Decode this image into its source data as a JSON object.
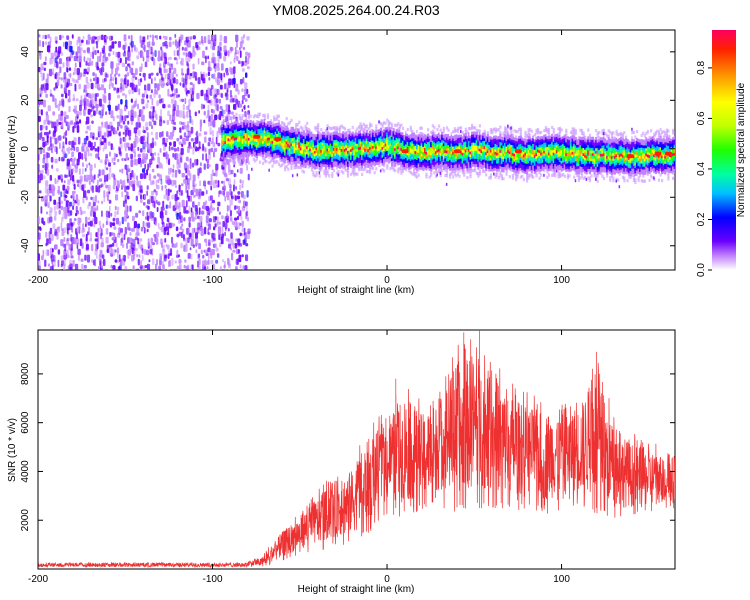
{
  "chart_data": [
    {
      "type": "heatmap",
      "title": "YM08.2025.264.00.24.R03",
      "xlabel": "Height of straight line (km)",
      "ylabel": "Frequency (Hz)",
      "xlim": [
        -200,
        165
      ],
      "ylim": [
        -50,
        49
      ],
      "xticks": [
        -200,
        -100,
        0,
        100
      ],
      "xtick_labels": [
        "-200",
        "-100",
        "0",
        "100"
      ],
      "yticks": [
        40,
        20,
        0,
        -20,
        -40
      ],
      "ytick_labels": [
        "40",
        "20",
        "0",
        "-20",
        "-40"
      ],
      "noise_region_x": [
        -200,
        -80
      ],
      "signal_region_x": [
        -95,
        165
      ],
      "signal_centerline": {
        "x": [
          -95,
          -80,
          -70,
          -60,
          -50,
          -40,
          -30,
          -20,
          -10,
          0,
          10,
          20,
          30,
          40,
          50,
          60,
          70,
          80,
          90,
          100,
          110,
          120,
          130,
          140,
          150,
          160,
          165
        ],
        "freq_hz": [
          4,
          5,
          5,
          3,
          1,
          0,
          0,
          0,
          1,
          2,
          0,
          -1,
          0,
          -1,
          0,
          -1,
          -1,
          -2,
          -1,
          -1,
          -2,
          -2,
          -2,
          -3,
          -2,
          -2,
          -2
        ]
      },
      "colorbar": {
        "label": "Normalized spectral amplitude",
        "range": [
          0,
          0.95
        ],
        "ticks": [
          0.0,
          0.2,
          0.4,
          0.6,
          0.8
        ],
        "tick_labels": [
          "0.0",
          "0.2",
          "0.4",
          "0.6",
          "0.8"
        ],
        "colormap": [
          "#ffffff",
          "#c080ff",
          "#6a00ff",
          "#0000ff",
          "#00c0ff",
          "#00ffa0",
          "#20ff00",
          "#c0ff00",
          "#ffff00",
          "#ffa000",
          "#ff2000",
          "#ff0060"
        ]
      }
    },
    {
      "type": "line",
      "xlabel": "Height of straight line (km)",
      "ylabel": "SNR (10 * v/v)",
      "xlim": [
        -200,
        165
      ],
      "ylim": [
        0,
        9800
      ],
      "xticks": [
        -200,
        -100,
        0,
        100
      ],
      "xtick_labels": [
        "-200",
        "-100",
        "0",
        "100"
      ],
      "yticks": [
        2000,
        4000,
        6000,
        8000
      ],
      "ytick_labels": [
        "2000",
        "4000",
        "6000",
        "8000"
      ],
      "series": [
        {
          "name": "SNR",
          "color": "#ee3030",
          "envelope": {
            "x": [
              -200,
              -150,
              -100,
              -80,
              -72,
              -60,
              -50,
              -40,
              -30,
              -20,
              -10,
              0,
              10,
              20,
              30,
              40,
              50,
              60,
              70,
              80,
              90,
              100,
              110,
              120,
              130,
              140,
              150,
              160,
              165
            ],
            "low": [
              50,
              50,
              60,
              60,
              80,
              300,
              600,
              700,
              900,
              1000,
              1500,
              2200,
              2000,
              2400,
              2600,
              2200,
              2400,
              2500,
              2300,
              2500,
              2200,
              2400,
              2500,
              2200,
              2000,
              2100,
              2200,
              2400,
              2400
            ],
            "high": [
              300,
              300,
              350,
              350,
              500,
              1700,
              2400,
              3200,
              4000,
              4500,
              6000,
              6500,
              7800,
              6900,
              7500,
              9400,
              9600,
              8800,
              7800,
              7300,
              7000,
              7400,
              7200,
              8900,
              6300,
              5600,
              5300,
              5000,
              4900
            ]
          },
          "annotated_peaks": [
            {
              "x": 44,
              "y": 9700
            },
            {
              "x": 53,
              "y": 9800
            },
            {
              "x": 120,
              "y": 8900
            },
            {
              "x": 5,
              "y": 7800
            }
          ]
        }
      ]
    }
  ]
}
